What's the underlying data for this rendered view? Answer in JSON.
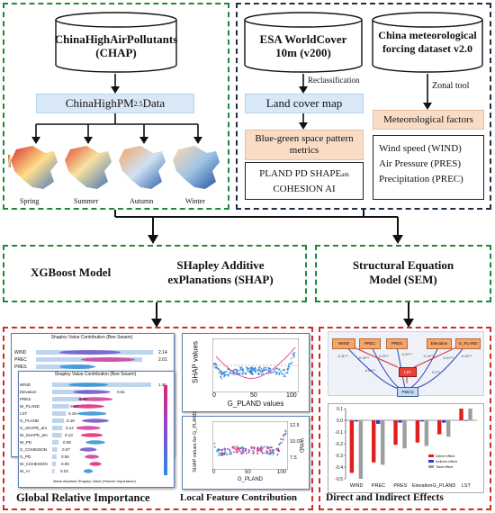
{
  "panel1": {
    "chap_title": "ChinaHighAirPollutants",
    "chap_sub": "(CHAP)",
    "pm_label": "ChinaHighPM",
    "pm_sub": "2.5",
    "pm_suffix": " Data",
    "seasons": [
      "Spring",
      "Summer",
      "Autumn",
      "Winter"
    ]
  },
  "panel2": {
    "esa_title": "ESA WorldCover",
    "esa_sub": "10m (v200)",
    "reclass": "Reclassification",
    "landcover": "Land cover map",
    "bg_metrics_1": "Blue-green space pattern",
    "bg_metrics_2": "metrics",
    "metrics_line1": "PLAND   PD   SHAPE",
    "metrics_am": "am",
    "metrics_line2": "COHESION   AI",
    "china_title_1": "China meteorological",
    "china_title_2": "forcing dataset v2.0",
    "zonal": "Zonal tool",
    "met_factors": "Meteorological factors",
    "wind": "Wind speed (WIND)",
    "pres": "Air Pressure (PRES)",
    "prec": "Precipitation (PREC)"
  },
  "models": {
    "xgb": "XGBoost Model",
    "shap_1": "SHapley Additive",
    "shap_2": "exPlanations (SHAP)",
    "sem_1": "Structural Equation",
    "sem_2": "Model (SEM)"
  },
  "bottom": {
    "global": "Global Relative Importance",
    "local": "Local Feature Contribution",
    "direct": "Direct and Indirect Effects"
  },
  "shap_beeswarm": {
    "title_back": "Shapley Value Contribution (Bee Swarm)",
    "title_front": "Shapley Value Contribution (Bee Swarm)",
    "front_features": [
      "WIND",
      "Elevation",
      "PRES",
      "W_PLAND",
      "LST",
      "G_PLAND",
      "G_SHAPE_am",
      "W_SHAPE_am",
      "W_PD",
      "G_COHESION",
      "G_PD",
      "W_COHESION",
      "W_AI"
    ],
    "back_features": [
      "WIND",
      "PREC",
      "PRES"
    ],
    "back_values": [
      "2.14",
      "2.01",
      ""
    ],
    "front_values": [
      "1.36",
      "0.51",
      "0.40",
      "0.23",
      "0.19",
      "0.16",
      "0.14",
      "0.13",
      "0.09",
      "0.07",
      "0.06",
      "0.05",
      "0.03"
    ],
    "xlabel_bottom": "Mean Absolute Shapley Value (Feature Importance)",
    "legend_high": "High",
    "legend_low": "Low",
    "legend_title": "Feature value"
  },
  "shap_scatter1": {
    "ylabel": "SHAP values",
    "xlabel": "G_PLAND values",
    "xticks": [
      "0",
      "50",
      "100"
    ]
  },
  "shap_scatter2": {
    "ylabel": "SHAP values for G_PLAND",
    "xlabel": "G_PLAND",
    "xticks": [
      "0",
      "50",
      "100"
    ],
    "right_label": "WIND",
    "right_ticks": [
      "12.5",
      "10.0",
      "7.5"
    ]
  },
  "sem_diagram": {
    "nodes": [
      "WIND",
      "PREC",
      "PRES",
      "Elevation",
      "G_PLAND"
    ],
    "mid": "LST",
    "bottom_node": "PM2.5",
    "coefs": [
      "-0.11***",
      "-0.13***",
      "-0.22***",
      "-0.21***",
      "-0.14***",
      "-0.21***",
      "-0.10***",
      "-0.09***",
      "0.1***"
    ]
  },
  "chart_data": {
    "type": "bar",
    "categories": [
      "WIND",
      "PREC",
      "PRES",
      "Elevation",
      "G_PLAND",
      "LST"
    ],
    "series": [
      {
        "name": "Direct effect",
        "values": [
          -0.45,
          -0.36,
          -0.21,
          -0.19,
          -0.12,
          0.1
        ]
      },
      {
        "name": "Indirect effect",
        "values": [
          -0.01,
          -0.03,
          -0.02,
          -0.01,
          -0.02,
          0.0
        ]
      },
      {
        "name": "Total effect",
        "values": [
          -0.5,
          -0.38,
          -0.24,
          -0.22,
          -0.14,
          0.1
        ]
      }
    ],
    "ylim": [
      -0.5,
      0.1
    ],
    "yticks": [
      "0.1",
      "0.0",
      "-0.1",
      "-0.2",
      "-0.3",
      "-0.4",
      "-0.5"
    ],
    "colors": {
      "direct": "#e0201f",
      "indirect": "#2a3fc8",
      "total": "#9e9e9e"
    }
  },
  "colors": {
    "green": "#1f8a3b",
    "dark": "#1f2f44",
    "red": "#d42a2a",
    "blue_box": "#d9e8f6",
    "peach_box": "#f9dcc6"
  }
}
